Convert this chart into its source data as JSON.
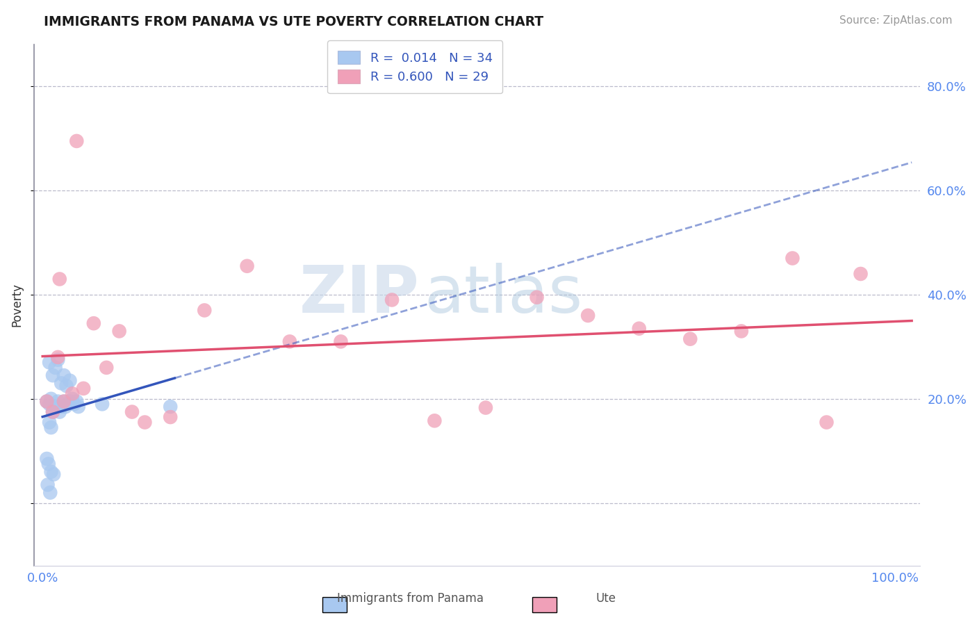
{
  "title": "IMMIGRANTS FROM PANAMA VS UTE POVERTY CORRELATION CHART",
  "source_text": "Source: ZipAtlas.com",
  "ylabel": "Poverty",
  "blue_color": "#A8C8F0",
  "pink_color": "#F0A0B8",
  "blue_line_color": "#3355BB",
  "pink_line_color": "#E05070",
  "legend_blue_R": "R =  0.014",
  "legend_blue_N": "N = 34",
  "legend_pink_R": "R = 0.600",
  "legend_pink_N": "N = 29",
  "watermark_zip": "ZIP",
  "watermark_atlas": "atlas",
  "ylim": [
    -0.12,
    0.88
  ],
  "xlim": [
    -0.01,
    1.03
  ],
  "yticks": [
    0.0,
    0.2,
    0.4,
    0.6,
    0.8
  ],
  "xticks": [
    0.0,
    0.25,
    0.5,
    0.75,
    1.0
  ],
  "blue_x": [
    0.005,
    0.008,
    0.01,
    0.012,
    0.015,
    0.018,
    0.02,
    0.022,
    0.025,
    0.027,
    0.03,
    0.032,
    0.035,
    0.037,
    0.04,
    0.042,
    0.008,
    0.012,
    0.015,
    0.018,
    0.022,
    0.025,
    0.028,
    0.032,
    0.008,
    0.01,
    0.07,
    0.15,
    0.005,
    0.007,
    0.01,
    0.013,
    0.006,
    0.009
  ],
  "blue_y": [
    0.195,
    0.19,
    0.2,
    0.175,
    0.185,
    0.195,
    0.175,
    0.185,
    0.195,
    0.185,
    0.19,
    0.195,
    0.2,
    0.19,
    0.195,
    0.185,
    0.27,
    0.245,
    0.26,
    0.275,
    0.23,
    0.245,
    0.225,
    0.235,
    0.155,
    0.145,
    0.19,
    0.185,
    0.085,
    0.075,
    0.06,
    0.055,
    0.035,
    0.02
  ],
  "pink_x": [
    0.005,
    0.012,
    0.018,
    0.025,
    0.035,
    0.048,
    0.06,
    0.075,
    0.09,
    0.105,
    0.12,
    0.15,
    0.19,
    0.24,
    0.29,
    0.35,
    0.41,
    0.46,
    0.52,
    0.58,
    0.64,
    0.7,
    0.76,
    0.82,
    0.88,
    0.92,
    0.96,
    0.02,
    0.04
  ],
  "pink_y": [
    0.195,
    0.175,
    0.28,
    0.195,
    0.21,
    0.22,
    0.345,
    0.26,
    0.33,
    0.175,
    0.155,
    0.165,
    0.37,
    0.455,
    0.31,
    0.31,
    0.39,
    0.158,
    0.183,
    0.395,
    0.36,
    0.335,
    0.315,
    0.33,
    0.47,
    0.155,
    0.44,
    0.43,
    0.695
  ],
  "blue_trend_x_solid_end": 0.155,
  "pink_trend_x_start": 0.0,
  "pink_trend_x_end": 1.0
}
